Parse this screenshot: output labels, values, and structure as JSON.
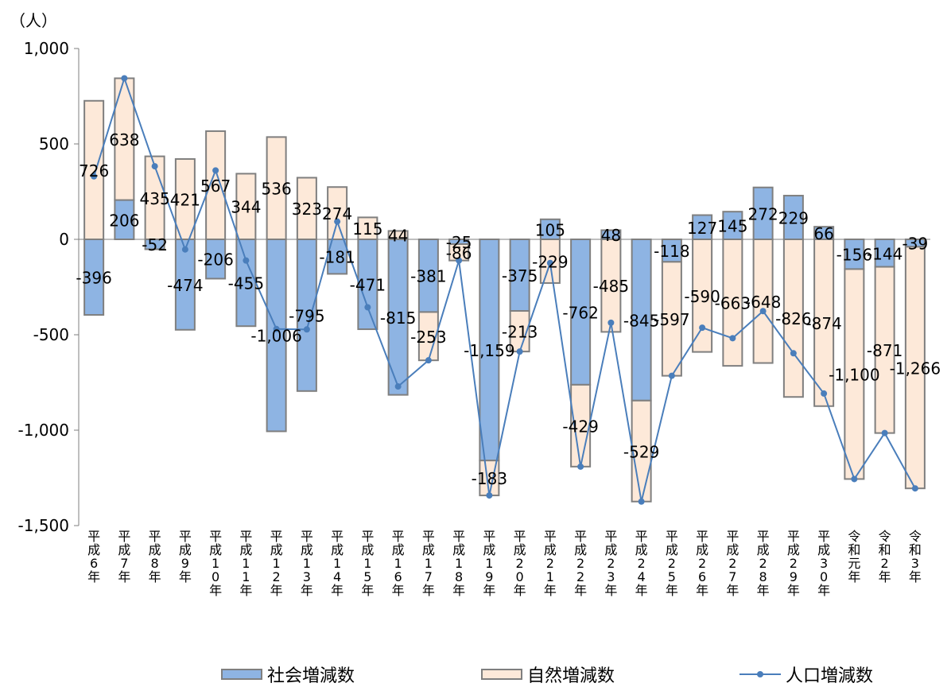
{
  "chart_data": {
    "type": "bar",
    "unit_label": "（人）",
    "ylim": [
      -1500,
      1000
    ],
    "yticks": [
      1000,
      500,
      0,
      -500,
      -1000,
      -1500
    ],
    "ytick_labels": [
      "1,000",
      "500",
      "0",
      "-500",
      "-1,000",
      "-1,500"
    ],
    "categories": [
      "平成6年",
      "平成7年",
      "平成8年",
      "平成9年",
      "平成10年",
      "平成11年",
      "平成12年",
      "平成13年",
      "平成14年",
      "平成15年",
      "平成16年",
      "平成17年",
      "平成18年",
      "平成19年",
      "平成20年",
      "平成21年",
      "平成22年",
      "平成23年",
      "平成24年",
      "平成25年",
      "平成26年",
      "平成27年",
      "平成28年",
      "平成29年",
      "平成30年",
      "令和元年",
      "令和2年",
      "令和3年"
    ],
    "series": [
      {
        "name": "社会増減数",
        "color": "#8eb4e3",
        "values": [
          -396,
          206,
          -52,
          -474,
          -206,
          -455,
          -1006,
          -795,
          -181,
          -471,
          -815,
          -381,
          -25,
          -1159,
          -375,
          105,
          -762,
          48,
          -845,
          -118,
          127,
          145,
          272,
          229,
          66,
          -156,
          -144,
          -39
        ],
        "labels": [
          "-396",
          "206",
          "-52",
          "-474",
          "-206",
          "-455",
          "-1,006",
          "-795",
          "-181",
          "-471",
          "-815",
          "-381",
          "-25",
          "-1,159",
          "-375",
          "105",
          "-762",
          "48",
          "-845",
          "-118",
          "127",
          "145",
          "272",
          "229",
          "66",
          "-156",
          "-144",
          "-39"
        ]
      },
      {
        "name": "自然増減数",
        "color": "#fde9d9",
        "values": [
          726,
          638,
          435,
          421,
          567,
          344,
          536,
          323,
          274,
          115,
          44,
          -253,
          -86,
          -183,
          -213,
          -229,
          -429,
          -485,
          -529,
          -597,
          -590,
          -663,
          -648,
          -826,
          -874,
          -1100,
          -871,
          -1266
        ],
        "labels": [
          "726",
          "638",
          "435",
          "421",
          "567",
          "344",
          "536",
          "323",
          "274",
          "115",
          "44",
          "-253",
          "-86",
          "-183",
          "-213",
          "-229",
          "-429",
          "-485",
          "-529",
          "-597",
          "-590",
          "-663",
          "-648",
          "-826",
          "-874",
          "-1,100",
          "-871",
          "-1,266"
        ]
      },
      {
        "name": "人口増減数",
        "color": "#4a7ebb",
        "type": "line",
        "values": [
          330,
          844,
          383,
          -53,
          361,
          -111,
          -470,
          -472,
          93,
          -356,
          -771,
          -634,
          -111,
          -1342,
          -588,
          -124,
          -1191,
          -437,
          -1374,
          -715,
          -463,
          -518,
          -376,
          -597,
          -808,
          -1256,
          -1015,
          -1305
        ]
      }
    ]
  }
}
